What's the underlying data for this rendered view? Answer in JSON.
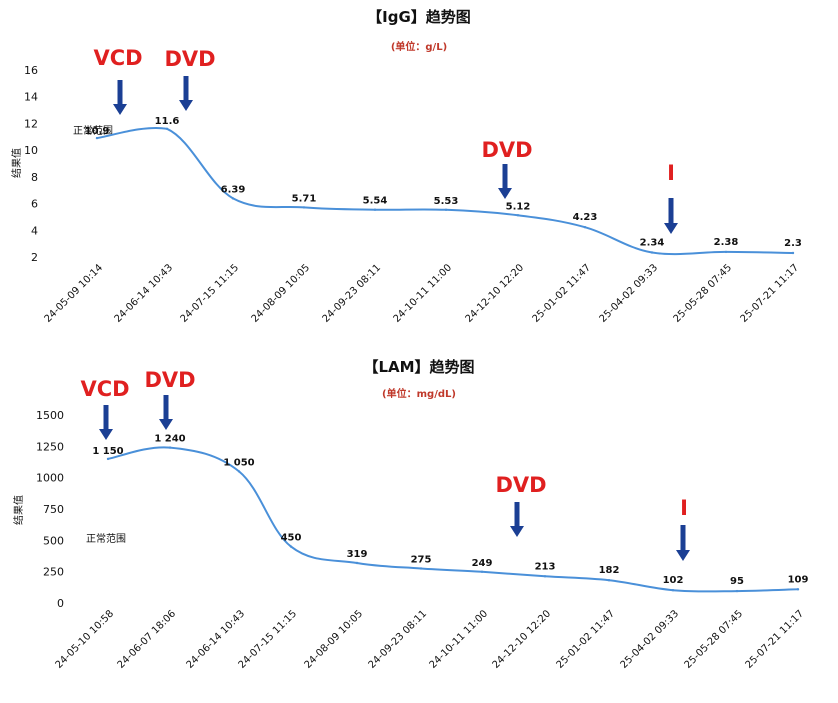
{
  "chart_data": [
    {
      "type": "line",
      "title": "【IgG】趋势图",
      "subtitle": "(单位：g/L)",
      "ylabel": "结果值",
      "normal_label": "正常范围",
      "yticks": [
        2,
        4,
        6,
        8,
        10,
        12,
        14,
        16
      ],
      "ylim": [
        2,
        16
      ],
      "categories": [
        "24-05-09 10:14",
        "24-06-14 10:43",
        "24-07-15 11:15",
        "24-08-09 10:05",
        "24-09-23 08:11",
        "24-10-11 11:00",
        "24-12-10 12:20",
        "25-01-02 11:47",
        "25-04-02 09:33",
        "25-05-28 07:45",
        "25-07-21 11:17"
      ],
      "values": [
        10.9,
        11.6,
        6.39,
        5.71,
        5.54,
        5.53,
        5.12,
        4.23,
        2.34,
        2.38,
        2.3
      ],
      "value_labels": [
        "10.9",
        "11.6",
        "6.39",
        "5.71",
        "5.54",
        "5.53",
        "5.12",
        "4.23",
        "2.34",
        "2.38",
        "2.3"
      ],
      "annotations": [
        {
          "label": "VCD",
          "at": 0
        },
        {
          "label": "DVD",
          "at": 1
        },
        {
          "label": "DVD",
          "at": 6
        },
        {
          "label": "I",
          "at": 8
        }
      ]
    },
    {
      "type": "line",
      "title": "【LAM】趋势图",
      "subtitle": "(单位：mg/dL)",
      "ylabel": "结果值",
      "normal_label": "正常范围",
      "yticks": [
        0,
        250,
        500,
        750,
        1000,
        1250,
        1500
      ],
      "ylim": [
        0,
        1500
      ],
      "categories": [
        "24-05-10 10:58",
        "24-06-07 18:06",
        "24-06-14 10:43",
        "24-07-15 11:15",
        "24-08-09 10:05",
        "24-09-23 08:11",
        "24-10-11 11:00",
        "24-12-10 12:20",
        "25-01-02 11:47",
        "25-04-02 09:33",
        "25-05-28 07:45",
        "25-07-21 11:17"
      ],
      "values": [
        1150,
        1240,
        1050,
        450,
        319,
        275,
        249,
        213,
        182,
        102,
        95,
        109
      ],
      "value_labels": [
        "1 150",
        "1 240",
        "1 050",
        "450",
        "319",
        "275",
        "249",
        "213",
        "182",
        "102",
        "95",
        "109"
      ],
      "annotations": [
        {
          "label": "VCD",
          "at": 0
        },
        {
          "label": "DVD",
          "at": 1
        },
        {
          "label": "DVD",
          "at": 7
        },
        {
          "label": "I",
          "at": 9
        }
      ]
    }
  ],
  "colors": {
    "line": "#4a90d9",
    "arrow": "#1b3f94",
    "annotation": "#e02020",
    "subtitle": "#c0392b"
  }
}
